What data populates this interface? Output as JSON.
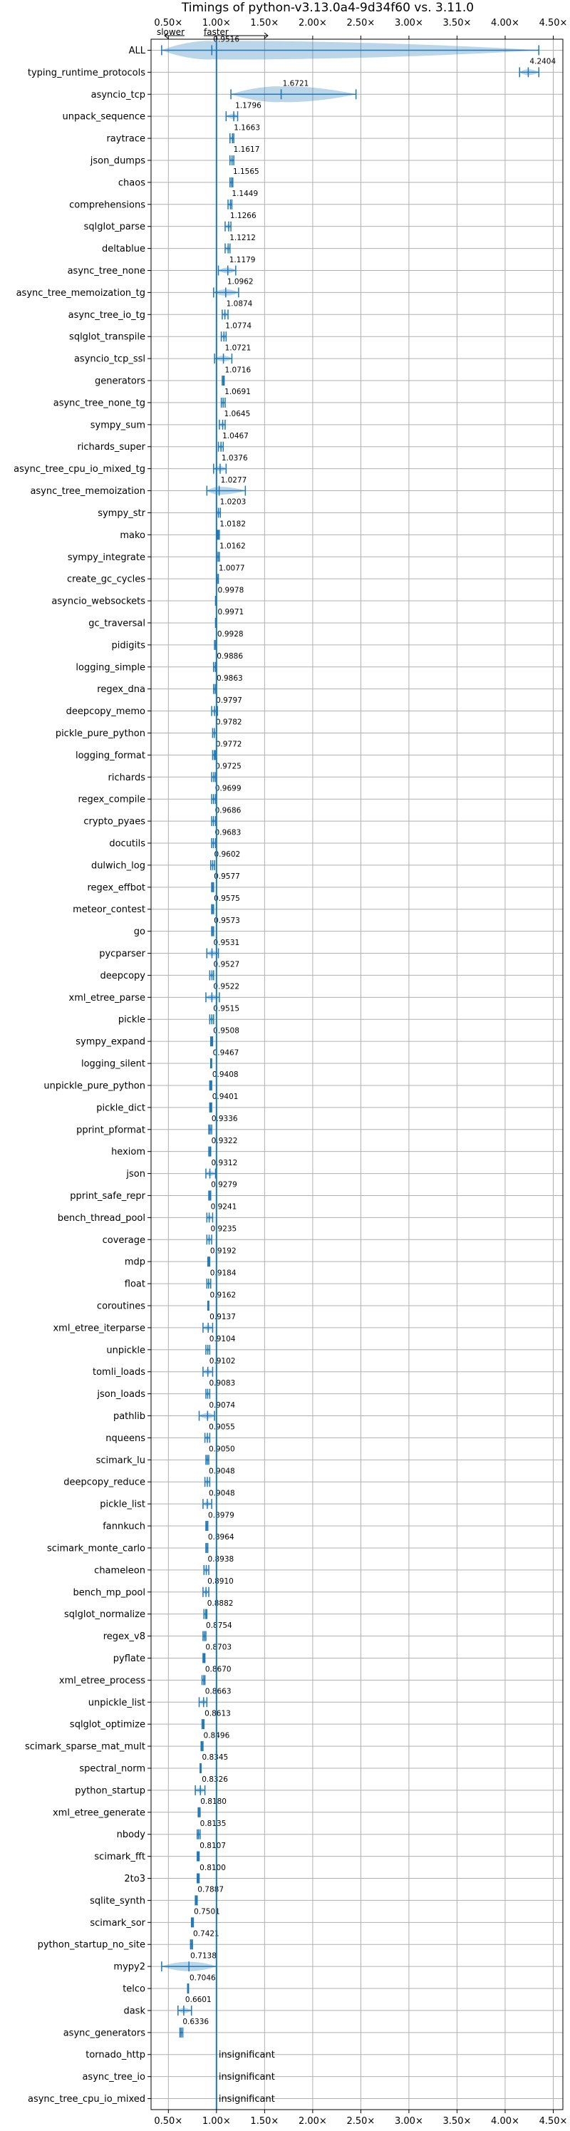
{
  "chart_data": {
    "type": "violin",
    "title": "Timings of python-v3.13.0a4-9d34f60 vs. 3.11.0",
    "direction_labels": {
      "slower": "slower",
      "faster": "faster"
    },
    "x_ticks": [
      {
        "value": 0.5,
        "label": "0.50×"
      },
      {
        "value": 1.0,
        "label": "1.00×"
      },
      {
        "value": 1.5,
        "label": "1.50×"
      },
      {
        "value": 2.0,
        "label": "2.00×"
      },
      {
        "value": 2.5,
        "label": "2.50×"
      },
      {
        "value": 3.0,
        "label": "3.00×"
      },
      {
        "value": 3.5,
        "label": "3.50×"
      },
      {
        "value": 4.0,
        "label": "4.00×"
      },
      {
        "value": 4.5,
        "label": "4.50×"
      }
    ],
    "xlim": [
      0.32,
      4.6
    ],
    "reference_line": 1.0,
    "grid": true,
    "benchmarks": [
      {
        "name": "ALL",
        "value": 0.9516,
        "label": "0.9516",
        "min": 0.43,
        "max": 4.35
      },
      {
        "name": "typing_runtime_protocols",
        "value": 4.2404,
        "label": "4.2404",
        "min": 4.15,
        "max": 4.35
      },
      {
        "name": "asyncio_tcp",
        "value": 1.6721,
        "label": "1.6721",
        "min": 1.15,
        "max": 2.45
      },
      {
        "name": "unpack_sequence",
        "value": 1.1796,
        "label": "1.1796",
        "min": 1.1,
        "max": 1.22
      },
      {
        "name": "raytrace",
        "value": 1.1663,
        "label": "1.1663",
        "min": 1.14,
        "max": 1.18
      },
      {
        "name": "json_dumps",
        "value": 1.1617,
        "label": "1.1617",
        "min": 1.14,
        "max": 1.18
      },
      {
        "name": "chaos",
        "value": 1.1565,
        "label": "1.1565",
        "min": 1.14,
        "max": 1.17
      },
      {
        "name": "comprehensions",
        "value": 1.1449,
        "label": "1.1449",
        "min": 1.12,
        "max": 1.16
      },
      {
        "name": "sqlglot_parse",
        "value": 1.1266,
        "label": "1.1266",
        "min": 1.09,
        "max": 1.15
      },
      {
        "name": "deltablue",
        "value": 1.1212,
        "label": "1.1212",
        "min": 1.09,
        "max": 1.14
      },
      {
        "name": "async_tree_none",
        "value": 1.1179,
        "label": "1.1179",
        "min": 1.02,
        "max": 1.2
      },
      {
        "name": "async_tree_memoization_tg",
        "value": 1.0962,
        "label": "1.0962",
        "min": 0.97,
        "max": 1.23
      },
      {
        "name": "async_tree_io_tg",
        "value": 1.0874,
        "label": "1.0874",
        "min": 1.06,
        "max": 1.12
      },
      {
        "name": "sqlglot_transpile",
        "value": 1.0774,
        "label": "1.0774",
        "min": 1.05,
        "max": 1.1
      },
      {
        "name": "asyncio_tcp_ssl",
        "value": 1.0721,
        "label": "1.0721",
        "min": 0.98,
        "max": 1.16
      },
      {
        "name": "generators",
        "value": 1.0716,
        "label": "1.0716",
        "min": 1.06,
        "max": 1.08
      },
      {
        "name": "async_tree_none_tg",
        "value": 1.0691,
        "label": "1.0691",
        "min": 1.05,
        "max": 1.09
      },
      {
        "name": "sympy_sum",
        "value": 1.0645,
        "label": "1.0645",
        "min": 1.03,
        "max": 1.09
      },
      {
        "name": "richards_super",
        "value": 1.0467,
        "label": "1.0467",
        "min": 1.02,
        "max": 1.07
      },
      {
        "name": "async_tree_cpu_io_mixed_tg",
        "value": 1.0376,
        "label": "1.0376",
        "min": 0.97,
        "max": 1.1
      },
      {
        "name": "async_tree_memoization",
        "value": 1.0277,
        "label": "1.0277",
        "min": 0.9,
        "max": 1.3
      },
      {
        "name": "sympy_str",
        "value": 1.0203,
        "label": "1.0203",
        "min": 1.0,
        "max": 1.04
      },
      {
        "name": "mako",
        "value": 1.0182,
        "label": "1.0182",
        "min": 1.01,
        "max": 1.03
      },
      {
        "name": "sympy_integrate",
        "value": 1.0162,
        "label": "1.0162",
        "min": 1.0,
        "max": 1.03
      },
      {
        "name": "create_gc_cycles",
        "value": 1.0077,
        "label": "1.0077",
        "min": 1.0,
        "max": 1.02
      },
      {
        "name": "asyncio_websockets",
        "value": 0.9978,
        "label": "0.9978",
        "min": 0.99,
        "max": 1.0
      },
      {
        "name": "gc_traversal",
        "value": 0.9971,
        "label": "0.9971",
        "min": 0.99,
        "max": 1.0
      },
      {
        "name": "pidigits",
        "value": 0.9928,
        "label": "0.9928",
        "min": 0.98,
        "max": 1.0
      },
      {
        "name": "logging_simple",
        "value": 0.9886,
        "label": "0.9886",
        "min": 0.97,
        "max": 1.0
      },
      {
        "name": "regex_dna",
        "value": 0.9863,
        "label": "0.9863",
        "min": 0.97,
        "max": 1.0
      },
      {
        "name": "deepcopy_memo",
        "value": 0.9797,
        "label": "0.9797",
        "min": 0.95,
        "max": 1.01
      },
      {
        "name": "pickle_pure_python",
        "value": 0.9782,
        "label": "0.9782",
        "min": 0.96,
        "max": 1.0
      },
      {
        "name": "logging_format",
        "value": 0.9772,
        "label": "0.9772",
        "min": 0.96,
        "max": 0.99
      },
      {
        "name": "richards",
        "value": 0.9725,
        "label": "0.9725",
        "min": 0.95,
        "max": 0.99
      },
      {
        "name": "regex_compile",
        "value": 0.9699,
        "label": "0.9699",
        "min": 0.95,
        "max": 0.99
      },
      {
        "name": "crypto_pyaes",
        "value": 0.9686,
        "label": "0.9686",
        "min": 0.95,
        "max": 0.99
      },
      {
        "name": "docutils",
        "value": 0.9683,
        "label": "0.9683",
        "min": 0.95,
        "max": 0.99
      },
      {
        "name": "dulwich_log",
        "value": 0.9602,
        "label": "0.9602",
        "min": 0.94,
        "max": 0.98
      },
      {
        "name": "regex_effbot",
        "value": 0.9577,
        "label": "0.9577",
        "min": 0.95,
        "max": 0.97
      },
      {
        "name": "meteor_contest",
        "value": 0.9575,
        "label": "0.9575",
        "min": 0.95,
        "max": 0.97
      },
      {
        "name": "go",
        "value": 0.9573,
        "label": "0.9573",
        "min": 0.95,
        "max": 0.97
      },
      {
        "name": "pycparser",
        "value": 0.9531,
        "label": "0.9531",
        "min": 0.9,
        "max": 1.02
      },
      {
        "name": "deepcopy",
        "value": 0.9527,
        "label": "0.9527",
        "min": 0.93,
        "max": 0.97
      },
      {
        "name": "xml_etree_parse",
        "value": 0.9522,
        "label": "0.9522",
        "min": 0.89,
        "max": 1.03
      },
      {
        "name": "pickle",
        "value": 0.9515,
        "label": "0.9515",
        "min": 0.93,
        "max": 0.97
      },
      {
        "name": "sympy_expand",
        "value": 0.9508,
        "label": "0.9508",
        "min": 0.94,
        "max": 0.96
      },
      {
        "name": "logging_silent",
        "value": 0.9467,
        "label": "0.9467",
        "min": 0.94,
        "max": 0.95
      },
      {
        "name": "unpickle_pure_python",
        "value": 0.9408,
        "label": "0.9408",
        "min": 0.93,
        "max": 0.95
      },
      {
        "name": "pickle_dict",
        "value": 0.9401,
        "label": "0.9401",
        "min": 0.93,
        "max": 0.95
      },
      {
        "name": "pprint_pformat",
        "value": 0.9336,
        "label": "0.9336",
        "min": 0.92,
        "max": 0.95
      },
      {
        "name": "hexiom",
        "value": 0.9322,
        "label": "0.9322",
        "min": 0.92,
        "max": 0.94
      },
      {
        "name": "json",
        "value": 0.9312,
        "label": "0.9312",
        "min": 0.89,
        "max": 0.99
      },
      {
        "name": "pprint_safe_repr",
        "value": 0.9279,
        "label": "0.9279",
        "min": 0.92,
        "max": 0.94
      },
      {
        "name": "bench_thread_pool",
        "value": 0.9241,
        "label": "0.9241",
        "min": 0.9,
        "max": 0.96
      },
      {
        "name": "coverage",
        "value": 0.9235,
        "label": "0.9235",
        "min": 0.9,
        "max": 0.95
      },
      {
        "name": "mdp",
        "value": 0.9192,
        "label": "0.9192",
        "min": 0.91,
        "max": 0.93
      },
      {
        "name": "float",
        "value": 0.9184,
        "label": "0.9184",
        "min": 0.9,
        "max": 0.94
      },
      {
        "name": "coroutines",
        "value": 0.9162,
        "label": "0.9162",
        "min": 0.91,
        "max": 0.92
      },
      {
        "name": "xml_etree_iterparse",
        "value": 0.9137,
        "label": "0.9137",
        "min": 0.86,
        "max": 0.96
      },
      {
        "name": "unpickle",
        "value": 0.9104,
        "label": "0.9104",
        "min": 0.89,
        "max": 0.93
      },
      {
        "name": "tomli_loads",
        "value": 0.9102,
        "label": "0.9102",
        "min": 0.86,
        "max": 0.96
      },
      {
        "name": "json_loads",
        "value": 0.9083,
        "label": "0.9083",
        "min": 0.89,
        "max": 0.93
      },
      {
        "name": "pathlib",
        "value": 0.9074,
        "label": "0.9074",
        "min": 0.82,
        "max": 0.98
      },
      {
        "name": "nqueens",
        "value": 0.9055,
        "label": "0.9055",
        "min": 0.88,
        "max": 0.93
      },
      {
        "name": "scimark_lu",
        "value": 0.905,
        "label": "0.9050",
        "min": 0.89,
        "max": 0.92
      },
      {
        "name": "deepcopy_reduce",
        "value": 0.9048,
        "label": "0.9048",
        "min": 0.88,
        "max": 0.93
      },
      {
        "name": "pickle_list",
        "value": 0.9048,
        "label": "0.9048",
        "min": 0.86,
        "max": 0.95
      },
      {
        "name": "fannkuch",
        "value": 0.8979,
        "label": "0.8979",
        "min": 0.89,
        "max": 0.91
      },
      {
        "name": "scimark_monte_carlo",
        "value": 0.8964,
        "label": "0.8964",
        "min": 0.89,
        "max": 0.91
      },
      {
        "name": "chameleon",
        "value": 0.8938,
        "label": "0.8938",
        "min": 0.87,
        "max": 0.92
      },
      {
        "name": "bench_mp_pool",
        "value": 0.891,
        "label": "0.8910",
        "min": 0.86,
        "max": 0.92
      },
      {
        "name": "sqlglot_normalize",
        "value": 0.8882,
        "label": "0.8882",
        "min": 0.87,
        "max": 0.9
      },
      {
        "name": "regex_v8",
        "value": 0.8754,
        "label": "0.8754",
        "min": 0.86,
        "max": 0.89
      },
      {
        "name": "pyflate",
        "value": 0.8703,
        "label": "0.8703",
        "min": 0.86,
        "max": 0.88
      },
      {
        "name": "xml_etree_process",
        "value": 0.867,
        "label": "0.8670",
        "min": 0.85,
        "max": 0.88
      },
      {
        "name": "unpickle_list",
        "value": 0.8663,
        "label": "0.8663",
        "min": 0.82,
        "max": 0.9
      },
      {
        "name": "sqlglot_optimize",
        "value": 0.8613,
        "label": "0.8613",
        "min": 0.85,
        "max": 0.87
      },
      {
        "name": "scimark_sparse_mat_mult",
        "value": 0.8496,
        "label": "0.8496",
        "min": 0.84,
        "max": 0.86
      },
      {
        "name": "spectral_norm",
        "value": 0.8345,
        "label": "0.8345",
        "min": 0.83,
        "max": 0.84
      },
      {
        "name": "python_startup",
        "value": 0.8326,
        "label": "0.8326",
        "min": 0.78,
        "max": 0.88
      },
      {
        "name": "xml_etree_generate",
        "value": 0.818,
        "label": "0.8180",
        "min": 0.81,
        "max": 0.83
      },
      {
        "name": "nbody",
        "value": 0.8135,
        "label": "0.8135",
        "min": 0.8,
        "max": 0.83
      },
      {
        "name": "scimark_fft",
        "value": 0.8107,
        "label": "0.8107",
        "min": 0.8,
        "max": 0.82
      },
      {
        "name": "2to3",
        "value": 0.81,
        "label": "0.8100",
        "min": 0.8,
        "max": 0.82
      },
      {
        "name": "sqlite_synth",
        "value": 0.7887,
        "label": "0.7887",
        "min": 0.78,
        "max": 0.8
      },
      {
        "name": "scimark_sor",
        "value": 0.7501,
        "label": "0.7501",
        "min": 0.74,
        "max": 0.76
      },
      {
        "name": "python_startup_no_site",
        "value": 0.7421,
        "label": "0.7421",
        "min": 0.73,
        "max": 0.75
      },
      {
        "name": "mypy2",
        "value": 0.7138,
        "label": "0.7138",
        "min": 0.43,
        "max": 1.0
      },
      {
        "name": "telco",
        "value": 0.7046,
        "label": "0.7046",
        "min": 0.7,
        "max": 0.71
      },
      {
        "name": "dask",
        "value": 0.6601,
        "label": "0.6601",
        "min": 0.6,
        "max": 0.74
      },
      {
        "name": "async_generators",
        "value": 0.6336,
        "label": "0.6336",
        "min": 0.62,
        "max": 0.65
      },
      {
        "name": "tornado_http",
        "value": null,
        "label": "insignificant"
      },
      {
        "name": "async_tree_io",
        "value": null,
        "label": "insignificant"
      },
      {
        "name": "async_tree_cpu_io_mixed",
        "value": null,
        "label": "insignificant"
      }
    ]
  }
}
